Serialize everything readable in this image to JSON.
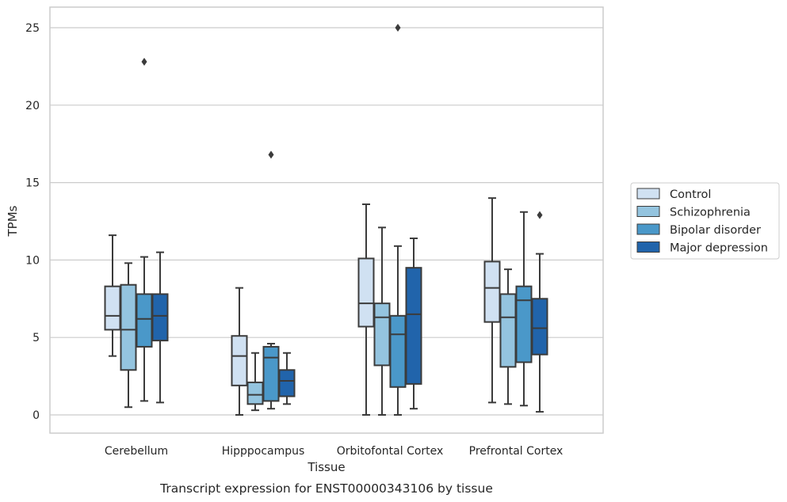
{
  "chart_data": {
    "type": "box",
    "xlabel": "Tissue",
    "ylabel": "TPMs",
    "caption": "Transcript expression for ENST00000343106 by tissue",
    "ylim": [
      -1.2,
      26.3
    ],
    "yticks": [
      0,
      5,
      10,
      15,
      20,
      25
    ],
    "grid": true,
    "legend_position": "right",
    "categories": [
      "Cerebellum",
      "Hipppocampus",
      "Orbitofontal Cortex",
      "Prefrontal Cortex"
    ],
    "series": [
      {
        "name": "Control",
        "color": "#d0e1f2",
        "boxes": [
          {
            "whisker_low": 3.8,
            "q1": 5.5,
            "median": 6.4,
            "q3": 8.3,
            "whisker_high": 11.6,
            "outliers": []
          },
          {
            "whisker_low": 0.0,
            "q1": 1.9,
            "median": 3.8,
            "q3": 5.1,
            "whisker_high": 8.2,
            "outliers": []
          },
          {
            "whisker_low": 0.0,
            "q1": 5.7,
            "median": 7.2,
            "q3": 10.1,
            "whisker_high": 13.6,
            "outliers": []
          },
          {
            "whisker_low": 0.8,
            "q1": 6.0,
            "median": 8.2,
            "q3": 9.9,
            "whisker_high": 14.0,
            "outliers": []
          }
        ]
      },
      {
        "name": "Schizophrenia",
        "color": "#94c4df",
        "boxes": [
          {
            "whisker_low": 0.5,
            "q1": 2.9,
            "median": 5.5,
            "q3": 8.4,
            "whisker_high": 9.8,
            "outliers": []
          },
          {
            "whisker_low": 0.3,
            "q1": 0.7,
            "median": 1.3,
            "q3": 2.1,
            "whisker_high": 4.0,
            "outliers": []
          },
          {
            "whisker_low": 0.0,
            "q1": 3.2,
            "median": 6.3,
            "q3": 7.2,
            "whisker_high": 12.1,
            "outliers": []
          },
          {
            "whisker_low": 0.7,
            "q1": 3.1,
            "median": 6.3,
            "q3": 7.8,
            "whisker_high": 9.4,
            "outliers": []
          }
        ]
      },
      {
        "name": "Bipolar disorder",
        "color": "#4a98c9",
        "boxes": [
          {
            "whisker_low": 0.9,
            "q1": 4.4,
            "median": 6.2,
            "q3": 7.8,
            "whisker_high": 10.2,
            "outliers": [
              22.8
            ]
          },
          {
            "whisker_low": 0.4,
            "q1": 0.9,
            "median": 3.7,
            "q3": 4.4,
            "whisker_high": 4.6,
            "outliers": [
              16.8
            ]
          },
          {
            "whisker_low": 0.0,
            "q1": 1.8,
            "median": 5.2,
            "q3": 6.4,
            "whisker_high": 10.9,
            "outliers": [
              25.0
            ]
          },
          {
            "whisker_low": 0.6,
            "q1": 3.4,
            "median": 7.4,
            "q3": 8.3,
            "whisker_high": 13.1,
            "outliers": []
          }
        ]
      },
      {
        "name": "Major depression",
        "color": "#2164ab",
        "boxes": [
          {
            "whisker_low": 0.8,
            "q1": 4.8,
            "median": 6.4,
            "q3": 7.8,
            "whisker_high": 10.5,
            "outliers": []
          },
          {
            "whisker_low": 0.7,
            "q1": 1.2,
            "median": 2.2,
            "q3": 2.9,
            "whisker_high": 4.0,
            "outliers": []
          },
          {
            "whisker_low": 0.4,
            "q1": 2.0,
            "median": 6.5,
            "q3": 9.5,
            "whisker_high": 11.4,
            "outliers": []
          },
          {
            "whisker_low": 0.2,
            "q1": 3.9,
            "median": 5.6,
            "q3": 7.5,
            "whisker_high": 10.4,
            "outliers": [
              12.9
            ]
          }
        ]
      }
    ]
  },
  "colors": {
    "box_edge": "#3b3b3b",
    "grid": "#cccccc",
    "axes_border": "#cccccc"
  }
}
